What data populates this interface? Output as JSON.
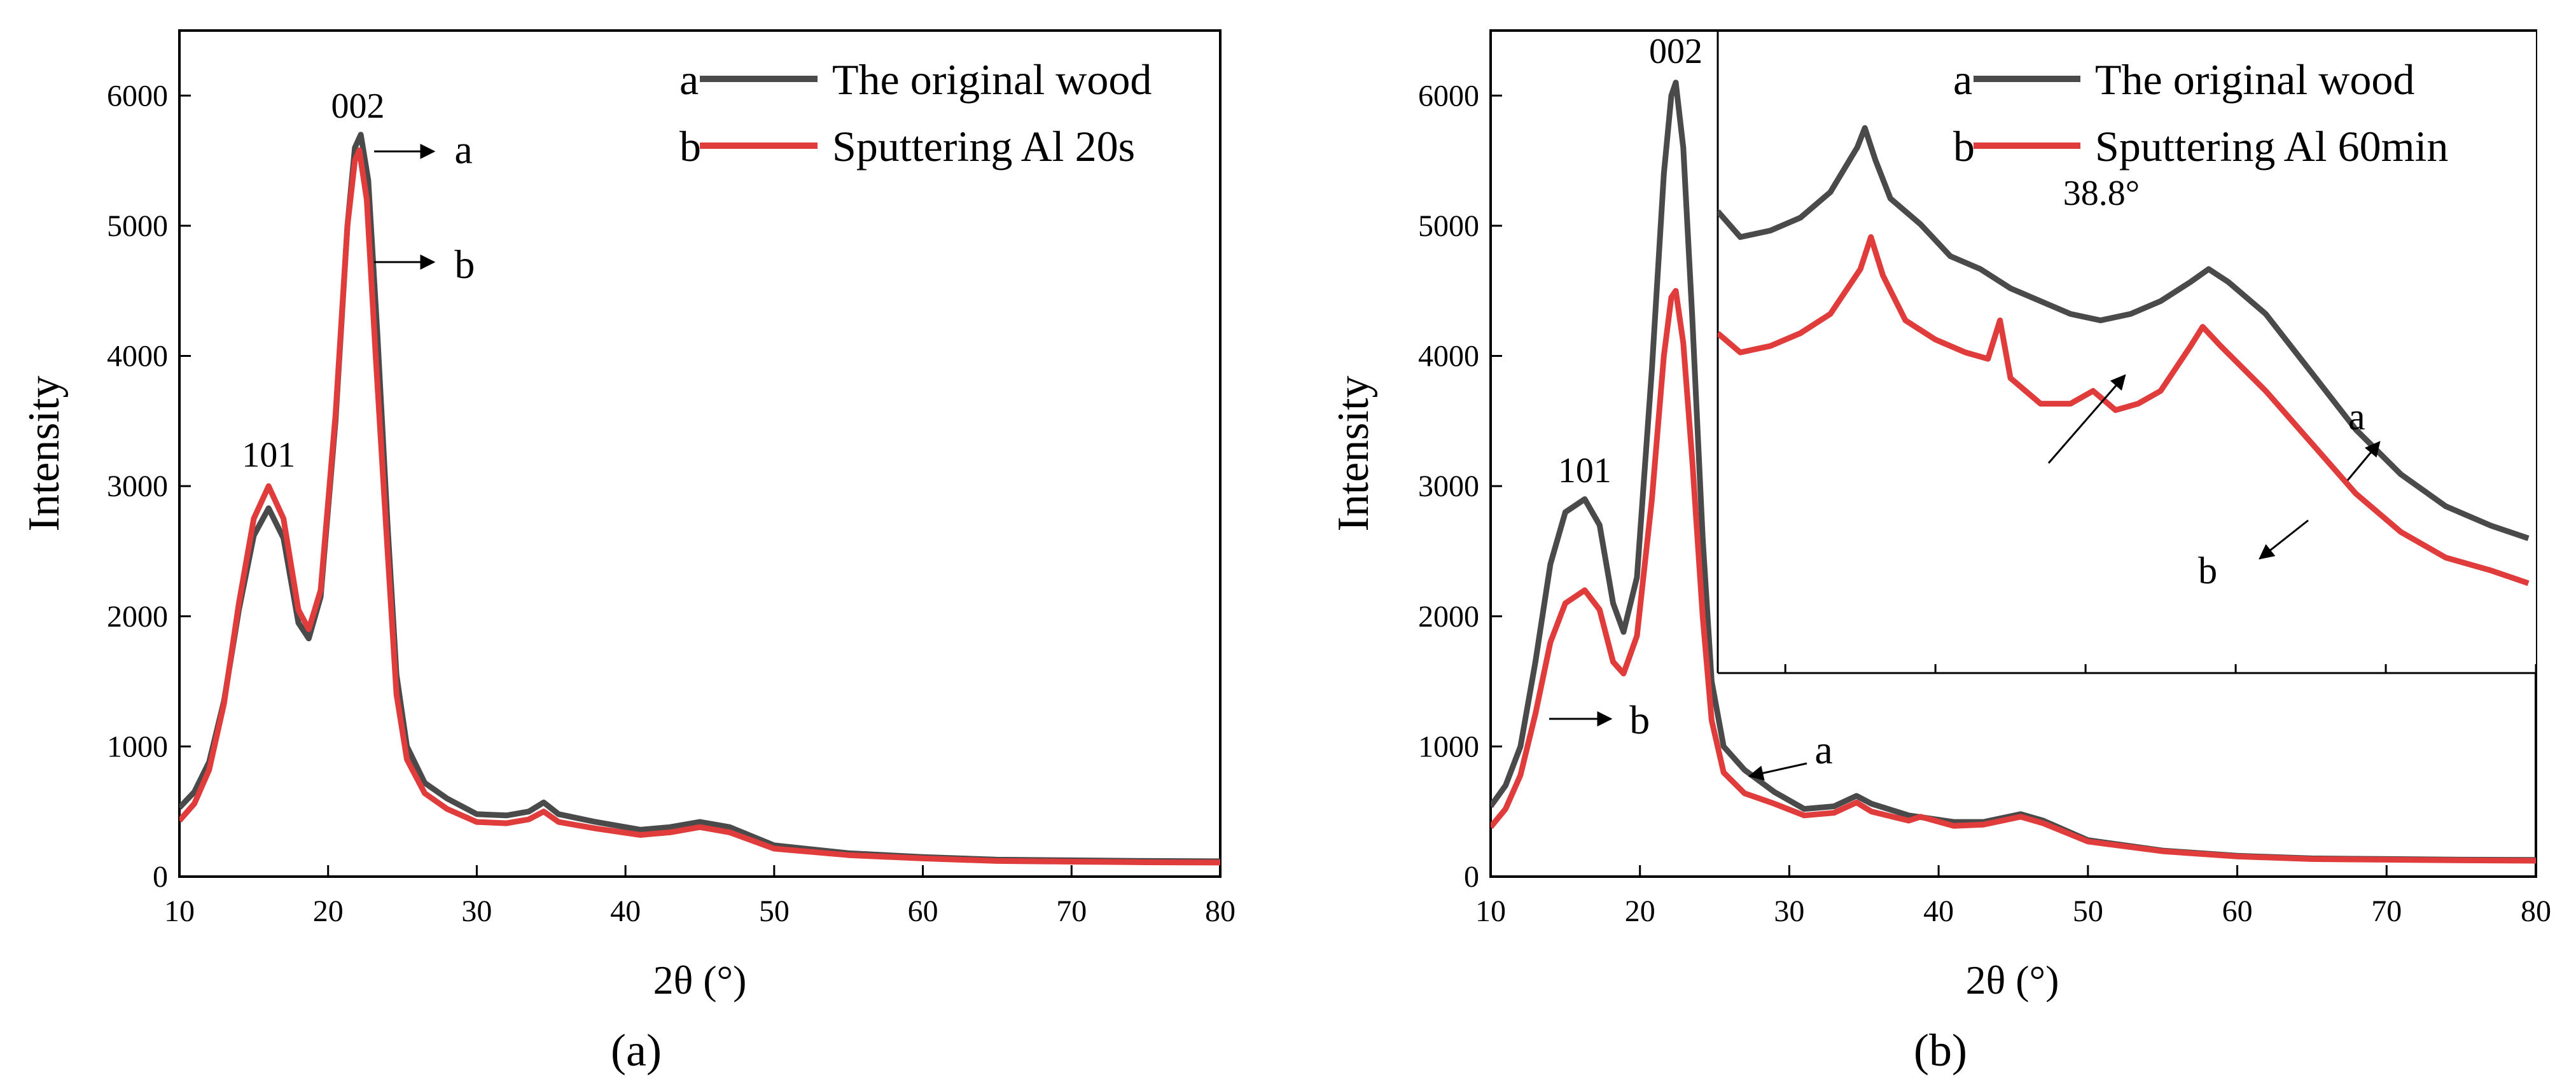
{
  "colors": {
    "series_a": "#4a4a4a",
    "series_b": "#e03c3c",
    "axis": "#000000",
    "background": "#ffffff"
  },
  "chart_data": [
    {
      "type": "line",
      "panel_label": "(a)",
      "xlabel": "2θ (°)",
      "ylabel": "Intensity",
      "xlim": [
        10,
        80
      ],
      "ylim": [
        0,
        6500
      ],
      "xticks": [
        10,
        20,
        30,
        40,
        50,
        60,
        70,
        80
      ],
      "yticks": [
        0,
        1000,
        2000,
        3000,
        4000,
        5000,
        6000
      ],
      "grid": false,
      "legend": "top-right",
      "series": [
        {
          "name": "The original wood",
          "letter": "a",
          "points": [
            [
              10,
              530
            ],
            [
              11,
              650
            ],
            [
              12,
              880
            ],
            [
              13,
              1350
            ],
            [
              14,
              2050
            ],
            [
              15,
              2620
            ],
            [
              16,
              2830
            ],
            [
              17,
              2600
            ],
            [
              18,
              1950
            ],
            [
              18.7,
              1830
            ],
            [
              19.5,
              2150
            ],
            [
              20.5,
              3500
            ],
            [
              21.3,
              5000
            ],
            [
              21.8,
              5600
            ],
            [
              22.2,
              5700
            ],
            [
              22.7,
              5350
            ],
            [
              23.3,
              4200
            ],
            [
              24,
              2700
            ],
            [
              24.6,
              1550
            ],
            [
              25.3,
              1000
            ],
            [
              26.5,
              720
            ],
            [
              28,
              600
            ],
            [
              30,
              480
            ],
            [
              32,
              470
            ],
            [
              33.5,
              500
            ],
            [
              34.5,
              570
            ],
            [
              35.5,
              480
            ],
            [
              38,
              420
            ],
            [
              41,
              360
            ],
            [
              43,
              380
            ],
            [
              45,
              420
            ],
            [
              47,
              380
            ],
            [
              50,
              240
            ],
            [
              55,
              180
            ],
            [
              60,
              150
            ],
            [
              65,
              130
            ],
            [
              70,
              125
            ],
            [
              75,
              120
            ],
            [
              80,
              118
            ]
          ]
        },
        {
          "name": "Sputtering Al 20s",
          "letter": "b",
          "points": [
            [
              10,
              430
            ],
            [
              11,
              560
            ],
            [
              12,
              820
            ],
            [
              13,
              1330
            ],
            [
              14,
              2100
            ],
            [
              15,
              2750
            ],
            [
              16,
              3000
            ],
            [
              17,
              2750
            ],
            [
              18,
              2050
            ],
            [
              18.7,
              1900
            ],
            [
              19.5,
              2200
            ],
            [
              20.5,
              3550
            ],
            [
              21.3,
              5000
            ],
            [
              21.8,
              5500
            ],
            [
              22.1,
              5580
            ],
            [
              22.6,
              5200
            ],
            [
              23.2,
              4000
            ],
            [
              24,
              2500
            ],
            [
              24.6,
              1400
            ],
            [
              25.3,
              900
            ],
            [
              26.5,
              640
            ],
            [
              28,
              520
            ],
            [
              30,
              420
            ],
            [
              32,
              410
            ],
            [
              33.5,
              440
            ],
            [
              34.5,
              500
            ],
            [
              35.5,
              420
            ],
            [
              38,
              370
            ],
            [
              41,
              320
            ],
            [
              43,
              340
            ],
            [
              45,
              380
            ],
            [
              47,
              340
            ],
            [
              50,
              215
            ],
            [
              55,
              165
            ],
            [
              60,
              140
            ],
            [
              65,
              120
            ],
            [
              70,
              115
            ],
            [
              75,
              110
            ],
            [
              80,
              108
            ]
          ]
        }
      ],
      "annotations": [
        {
          "text": "101",
          "x": 16,
          "y": 3150
        },
        {
          "text": "002",
          "x": 22,
          "y": 5830
        },
        {
          "text": "a",
          "x": 28.5,
          "y": 5480
        },
        {
          "text": "b",
          "x": 28.5,
          "y": 4600
        }
      ]
    },
    {
      "type": "line",
      "panel_label": "(b)",
      "xlabel": "2θ (°)",
      "ylabel": "Intensity",
      "xlim": [
        10,
        80
      ],
      "ylim": [
        0,
        6500
      ],
      "xticks": [
        10,
        20,
        30,
        40,
        50,
        60,
        70,
        80
      ],
      "yticks": [
        0,
        1000,
        2000,
        3000,
        4000,
        5000,
        6000
      ],
      "grid": false,
      "legend": "top-right",
      "series": [
        {
          "name": "The original wood",
          "letter": "a",
          "points": [
            [
              10,
              540
            ],
            [
              11,
              700
            ],
            [
              12,
              1000
            ],
            [
              13,
              1650
            ],
            [
              14,
              2400
            ],
            [
              15,
              2800
            ],
            [
              16.3,
              2900
            ],
            [
              17.3,
              2700
            ],
            [
              18.2,
              2100
            ],
            [
              18.9,
              1880
            ],
            [
              19.8,
              2300
            ],
            [
              20.8,
              3900
            ],
            [
              21.6,
              5400
            ],
            [
              22.1,
              6000
            ],
            [
              22.4,
              6100
            ],
            [
              22.9,
              5600
            ],
            [
              23.5,
              4300
            ],
            [
              24.2,
              2600
            ],
            [
              24.8,
              1500
            ],
            [
              25.6,
              1000
            ],
            [
              27,
              820
            ],
            [
              29,
              650
            ],
            [
              31,
              520
            ],
            [
              33,
              540
            ],
            [
              34.5,
              620
            ],
            [
              35.5,
              560
            ],
            [
              38,
              470
            ],
            [
              41,
              420
            ],
            [
              43,
              420
            ],
            [
              45.5,
              480
            ],
            [
              47,
              430
            ],
            [
              50,
              280
            ],
            [
              55,
              200
            ],
            [
              60,
              160
            ],
            [
              65,
              140
            ],
            [
              70,
              135
            ],
            [
              75,
              130
            ],
            [
              80,
              128
            ]
          ]
        },
        {
          "name": "Sputtering Al 60min",
          "letter": "b",
          "points": [
            [
              10,
              380
            ],
            [
              11,
              520
            ],
            [
              12,
              780
            ],
            [
              13,
              1250
            ],
            [
              14,
              1800
            ],
            [
              15,
              2100
            ],
            [
              16.3,
              2200
            ],
            [
              17.3,
              2050
            ],
            [
              18.2,
              1650
            ],
            [
              18.9,
              1560
            ],
            [
              19.8,
              1850
            ],
            [
              20.8,
              2900
            ],
            [
              21.6,
              4000
            ],
            [
              22.1,
              4450
            ],
            [
              22.4,
              4500
            ],
            [
              22.9,
              4100
            ],
            [
              23.5,
              3200
            ],
            [
              24.2,
              2000
            ],
            [
              24.8,
              1200
            ],
            [
              25.6,
              800
            ],
            [
              27,
              640
            ],
            [
              29,
              560
            ],
            [
              31,
              470
            ],
            [
              33,
              490
            ],
            [
              34.5,
              570
            ],
            [
              35.5,
              500
            ],
            [
              38,
              430
            ],
            [
              38.8,
              460
            ],
            [
              41,
              390
            ],
            [
              43,
              400
            ],
            [
              45.5,
              460
            ],
            [
              47,
              410
            ],
            [
              50,
              270
            ],
            [
              55,
              195
            ],
            [
              60,
              155
            ],
            [
              65,
              135
            ],
            [
              70,
              130
            ],
            [
              75,
              125
            ],
            [
              80,
              122
            ]
          ]
        }
      ],
      "annotations": [
        {
          "text": "101",
          "x": 16.3,
          "y": 3030
        },
        {
          "text": "002",
          "x": 22.4,
          "y": 6250
        },
        {
          "text": "b",
          "x": 19.3,
          "y": 1100
        },
        {
          "text": "a",
          "x": 31.7,
          "y": 870
        }
      ],
      "inset": {
        "type": "line",
        "xlim": [
          25.5,
          80
        ],
        "xticks": [
          30,
          40,
          50,
          60,
          70,
          80
        ],
        "tick_labels_shown": false,
        "series": [
          {
            "name": "The original wood",
            "letter": "a",
            "points": [
              [
                25.5,
                0.72
              ],
              [
                27,
                0.68
              ],
              [
                29,
                0.69
              ],
              [
                31,
                0.71
              ],
              [
                33,
                0.75
              ],
              [
                34.8,
                0.82
              ],
              [
                35.3,
                0.85
              ],
              [
                36,
                0.8
              ],
              [
                37,
                0.74
              ],
              [
                39,
                0.7
              ],
              [
                41,
                0.65
              ],
              [
                43,
                0.63
              ],
              [
                45,
                0.6
              ],
              [
                47,
                0.58
              ],
              [
                49,
                0.56
              ],
              [
                51,
                0.55
              ],
              [
                53,
                0.56
              ],
              [
                55,
                0.58
              ],
              [
                57,
                0.61
              ],
              [
                58.2,
                0.63
              ],
              [
                59.5,
                0.61
              ],
              [
                62,
                0.56
              ],
              [
                65,
                0.47
              ],
              [
                68,
                0.38
              ],
              [
                71,
                0.31
              ],
              [
                74,
                0.26
              ],
              [
                77,
                0.23
              ],
              [
                79.5,
                0.21
              ]
            ]
          },
          {
            "name": "Sputtering Al 60min",
            "letter": "b",
            "points": [
              [
                25.5,
                0.53
              ],
              [
                27,
                0.5
              ],
              [
                29,
                0.51
              ],
              [
                31,
                0.53
              ],
              [
                33,
                0.56
              ],
              [
                35,
                0.63
              ],
              [
                35.7,
                0.68
              ],
              [
                36.5,
                0.62
              ],
              [
                38,
                0.55
              ],
              [
                40,
                0.52
              ],
              [
                42,
                0.5
              ],
              [
                43.5,
                0.49
              ],
              [
                44.3,
                0.55
              ],
              [
                45,
                0.46
              ],
              [
                47,
                0.42
              ],
              [
                49,
                0.42
              ],
              [
                50.5,
                0.44
              ],
              [
                52,
                0.41
              ],
              [
                53.5,
                0.42
              ],
              [
                55,
                0.44
              ],
              [
                57,
                0.51
              ],
              [
                57.8,
                0.54
              ],
              [
                59,
                0.51
              ],
              [
                62,
                0.44
              ],
              [
                65,
                0.36
              ],
              [
                68,
                0.28
              ],
              [
                71,
                0.22
              ],
              [
                74,
                0.18
              ],
              [
                77,
                0.16
              ],
              [
                79.5,
                0.14
              ]
            ]
          }
        ],
        "annotations": [
          {
            "text": "38.8°",
            "x": 48.5,
            "y": 0.73
          },
          {
            "text": "a",
            "x": 67.5,
            "y": 0.38
          },
          {
            "text": "b",
            "x": 57.5,
            "y": 0.14
          }
        ]
      }
    }
  ]
}
